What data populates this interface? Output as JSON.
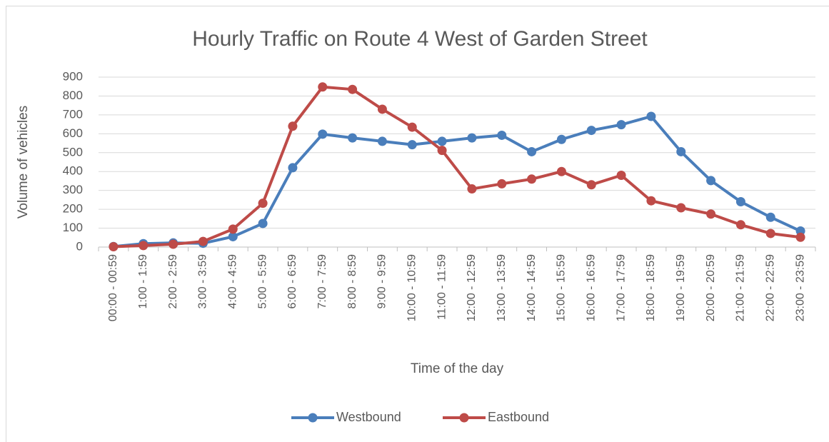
{
  "chart_data": {
    "type": "line",
    "title": "Hourly Traffic on Route 4 West of Garden Street",
    "x_label": "Time of the day",
    "y_label": "Volume of vehicles",
    "categories": [
      "00:00 - 00:59",
      "1:00 - 1:59",
      "2:00 - 2:59",
      "3:00 - 3:59",
      "4:00 - 4:59",
      "5:00 - 5:59",
      "6:00 - 6:59",
      "7:00 - 7:59",
      "8:00 - 8:59",
      "9:00 - 9:59",
      "10:00 - 10:59",
      "11:00 - 11:59",
      "12:00 - 12:59",
      "13:00 - 13:59",
      "14:00 - 14:59",
      "15:00 - 15:59",
      "16:00 - 16:59",
      "17:00 - 17:59",
      "18:00 - 18:59",
      "19:00 - 19:59",
      "20:00 - 20:59",
      "21:00 - 21:59",
      "22:00 - 22:59",
      "23:00 - 23:59"
    ],
    "series": [
      {
        "name": "Westbound",
        "color": "#4a7ebb",
        "values": [
          3,
          18,
          22,
          20,
          55,
          125,
          420,
          598,
          578,
          560,
          542,
          560,
          578,
          592,
          505,
          570,
          618,
          648,
          692,
          505,
          352,
          240,
          158,
          85
        ]
      },
      {
        "name": "Eastbound",
        "color": "#be4b48",
        "values": [
          2,
          8,
          15,
          30,
          95,
          232,
          640,
          848,
          835,
          730,
          635,
          512,
          308,
          335,
          360,
          400,
          330,
          380,
          245,
          208,
          175,
          118,
          72,
          52
        ]
      }
    ],
    "ylim": [
      0,
      900
    ],
    "yticks": [
      0,
      100,
      200,
      300,
      400,
      500,
      600,
      700,
      800,
      900
    ],
    "grid": true,
    "legend": "bottom"
  }
}
